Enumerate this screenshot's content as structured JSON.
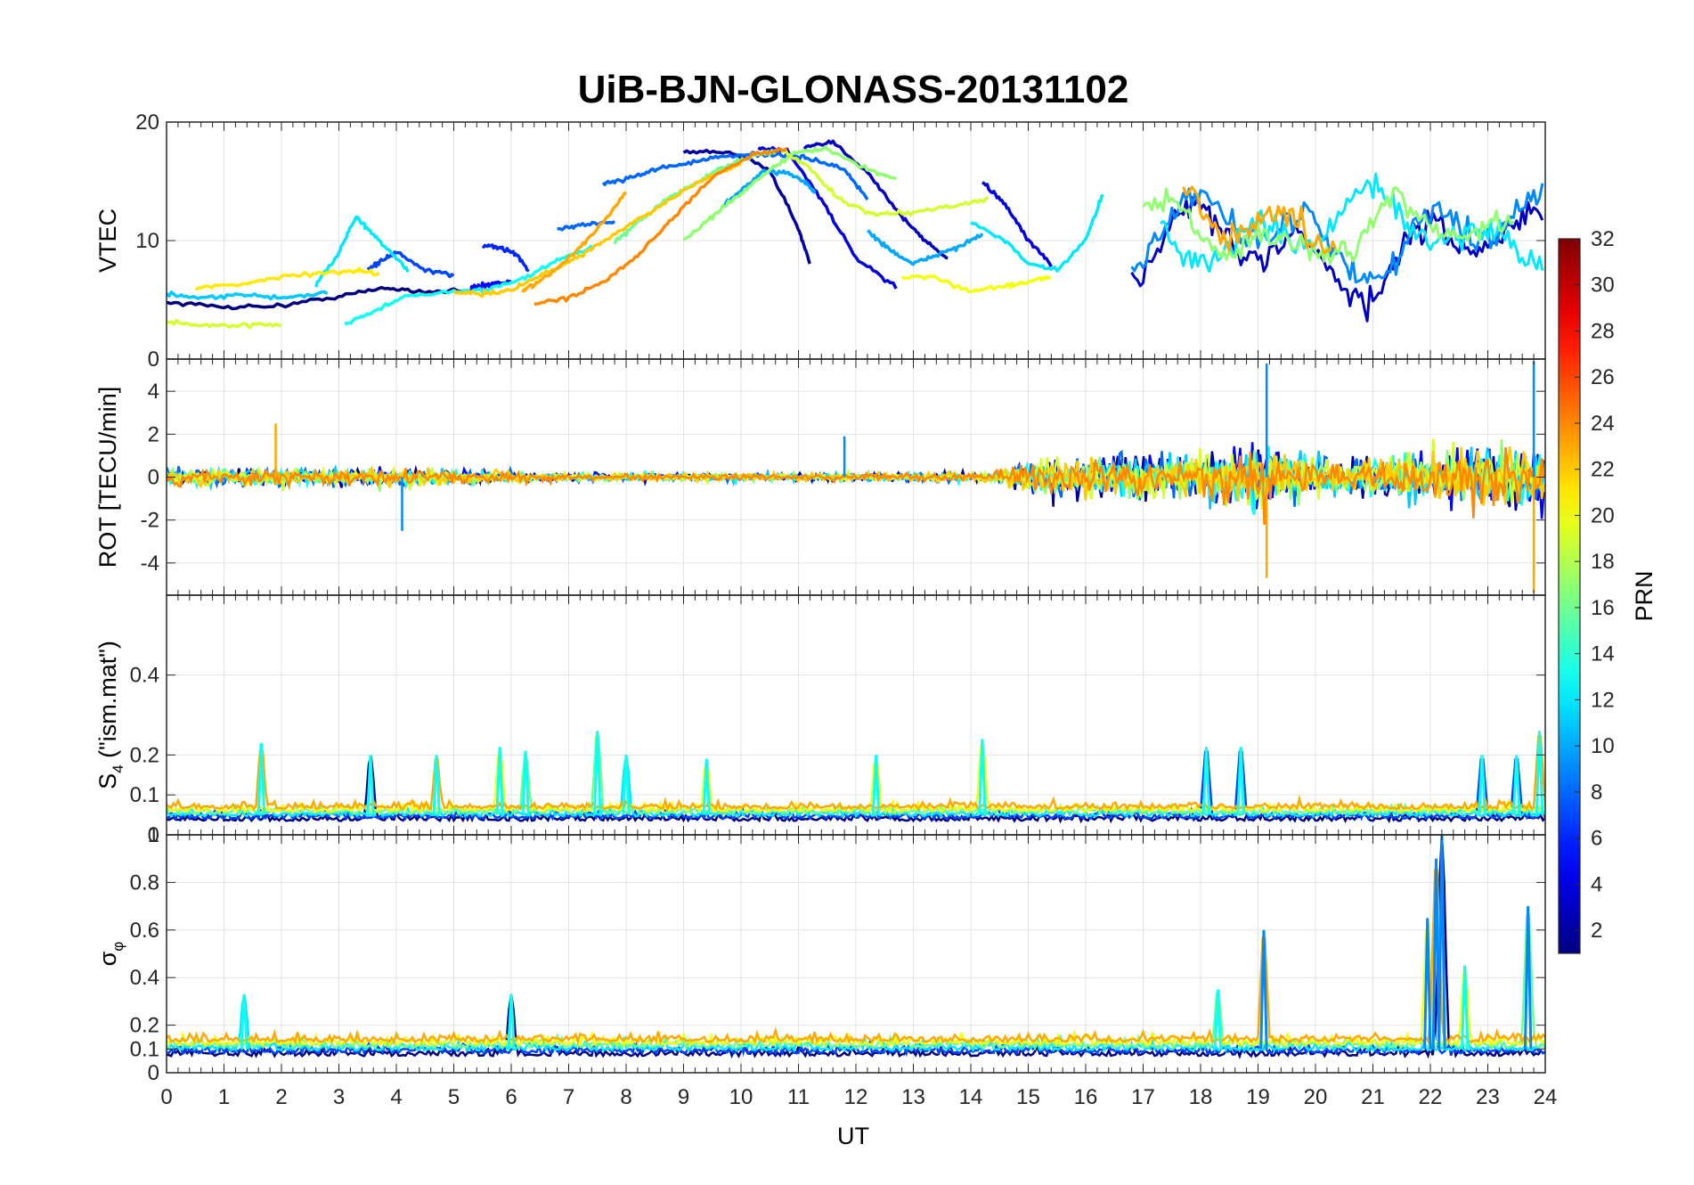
{
  "chart_data": {
    "type": "line",
    "title": "UiB-BJN-GLONASS-20131102",
    "xlabel": "UT",
    "xlim": [
      0,
      24
    ],
    "x_ticks": [
      "0",
      "1",
      "2",
      "3",
      "4",
      "5",
      "6",
      "7",
      "8",
      "9",
      "10",
      "11",
      "12",
      "13",
      "14",
      "15",
      "16",
      "17",
      "18",
      "19",
      "20",
      "21",
      "22",
      "23",
      "24"
    ],
    "grid": true,
    "line_color_by": "PRN",
    "colormap": "jet",
    "colorbar": {
      "label": "PRN",
      "range": [
        1,
        32
      ],
      "ticks": [
        "2",
        "4",
        "6",
        "8",
        "10",
        "12",
        "14",
        "16",
        "18",
        "20",
        "22",
        "24",
        "26",
        "28",
        "30",
        "32"
      ],
      "placement": "right"
    },
    "panels": [
      {
        "ylabel": "VTEC",
        "ylim": [
          0,
          20
        ],
        "y_ticks": [
          "0",
          "10",
          "20"
        ],
        "series": [
          {
            "prn": 1,
            "x": [
              0,
              1,
              2,
              3,
              3.8,
              4.5,
              5.5
            ],
            "y": [
              4.8,
              4.4,
              4.5,
              5.3,
              6.0,
              5.7,
              5.8
            ]
          },
          {
            "prn": 2,
            "x": [
              9,
              9.8,
              10.5,
              11,
              11.2
            ],
            "y": [
              17.5,
              17.5,
              16,
              11,
              8
            ]
          },
          {
            "prn": 3,
            "x": [
              11.1,
              11.6,
              12.2,
              12.8,
              13.2,
              13.6
            ],
            "y": [
              17.8,
              18.3,
              15.8,
              12,
              10,
              8.5
            ]
          },
          {
            "prn": 4,
            "x": [
              10.3,
              10.8,
              11.4,
              12,
              12.7
            ],
            "y": [
              17.8,
              17.6,
              13.5,
              8.5,
              6
            ]
          },
          {
            "prn": 4,
            "x": [
              14.2,
              14.6,
              15,
              15.4
            ],
            "y": [
              15,
              13,
              10,
              8
            ]
          },
          {
            "prn": 5,
            "x": [
              5.3,
              5.5,
              5.7,
              6
            ],
            "y": [
              6,
              6.2,
              6.4,
              6.5
            ]
          },
          {
            "prn": 6,
            "x": [
              5.5,
              5.8,
              6.1,
              6.3
            ],
            "y": [
              9.6,
              9.4,
              8.8,
              7.5
            ]
          },
          {
            "prn": 7,
            "x": [
              3.5,
              3.8,
              4,
              4.5,
              5
            ],
            "y": [
              7.5,
              8.5,
              9,
              7.5,
              7
            ]
          },
          {
            "prn": 8,
            "x": [
              6.8,
              7.2,
              7.8
            ],
            "y": [
              11,
              11.3,
              11.6
            ]
          },
          {
            "prn": 8,
            "x": [
              7.6,
              8,
              8.5,
              9,
              9.6,
              10.2,
              10.8,
              11.3,
              11.8,
              12.2
            ],
            "y": [
              14.8,
              15.2,
              16,
              16.5,
              17,
              17.3,
              17.2,
              16.8,
              16,
              13.5
            ]
          },
          {
            "prn": 10,
            "x": [
              12.2,
              12.6,
              13,
              13.4,
              13.8,
              14.2
            ],
            "y": [
              10.8,
              9.2,
              8,
              8.8,
              9.5,
              10.5
            ]
          },
          {
            "prn": 10,
            "x": [
              9.7,
              10,
              10.4,
              10.8,
              11.1,
              11.3
            ],
            "y": [
              13,
              14.2,
              15.8,
              15.8,
              15,
              14
            ]
          },
          {
            "prn": 11,
            "x": [
              0,
              0.6,
              1.3,
              2.1,
              2.8
            ],
            "y": [
              5.5,
              5.1,
              5.4,
              5.2,
              5.6
            ]
          },
          {
            "prn": 12,
            "x": [
              2.6,
              3,
              3.3,
              3.5,
              3.8,
              4.2
            ],
            "y": [
              6.2,
              9,
              12,
              11,
              9.5,
              7.5
            ]
          },
          {
            "prn": 12,
            "x": [
              14,
              14.6,
              15,
              15.5,
              16,
              16.3
            ],
            "y": [
              11.5,
              10,
              8,
              7.5,
              10,
              14
            ]
          },
          {
            "prn": 13,
            "x": [
              3.1,
              3.6,
              4.2,
              4.8,
              5.5,
              6.2,
              6.8,
              7.4
            ],
            "y": [
              3,
              4,
              5.4,
              5.6,
              5.8,
              6.8,
              8.3,
              9.5
            ]
          },
          {
            "prn": 16,
            "x": [
              7.8,
              8.2,
              8.7,
              9.2,
              9.6,
              10,
              10.3,
              10.6
            ],
            "y": [
              9.8,
              11.5,
              13.5,
              14.8,
              16,
              16.8,
              17.3,
              17.5
            ]
          },
          {
            "prn": 17,
            "x": [
              9,
              9.5,
              10,
              10.5,
              11,
              11.5,
              12.2,
              12.7
            ],
            "y": [
              10,
              12,
              14,
              16,
              17.5,
              17.7,
              16,
              15.2
            ]
          },
          {
            "prn": 19,
            "x": [
              0,
              0.6,
              1.3,
              2
            ],
            "y": [
              3.2,
              2.8,
              2.9,
              2.9
            ]
          },
          {
            "prn": 19,
            "x": [
              10.7,
              11.1,
              11.7,
              12.3,
              13,
              13.8,
              14.3
            ],
            "y": [
              17.6,
              16.5,
              13.5,
              12.2,
              12.4,
              13,
              13.5
            ]
          },
          {
            "prn": 20,
            "x": [
              12.8,
              13.4,
              14,
              14.6,
              15,
              15.4
            ],
            "y": [
              7,
              6.8,
              5.7,
              6.2,
              6.5,
              7
            ]
          },
          {
            "prn": 21,
            "x": [
              0.5,
              1.3,
              2,
              2.7,
              3.3,
              3.7
            ],
            "y": [
              6,
              6.3,
              7,
              7.2,
              7.5,
              7.2
            ]
          },
          {
            "prn": 22,
            "x": [
              5,
              5.5,
              6,
              6.5,
              7,
              7.5,
              8,
              8.5,
              9,
              9.5,
              10
            ],
            "y": [
              5.7,
              5.5,
              5.8,
              7,
              8.2,
              9.6,
              11.2,
              12.6,
              14.2,
              15.5,
              16.5
            ]
          },
          {
            "prn": 23,
            "x": [
              6.2,
              6.5,
              7,
              7.5,
              8
            ],
            "y": [
              5.8,
              6.5,
              8.5,
              11,
              14
            ]
          },
          {
            "prn": 24,
            "x": [
              6.4,
              7,
              7.6,
              8.2,
              8.8,
              9.5,
              10.2,
              10.8
            ],
            "y": [
              4.6,
              5.2,
              6.5,
              8.8,
              11.8,
              15.3,
              17.3,
              17.7
            ]
          }
        ],
        "storm_series": [
          {
            "prn": 3,
            "x0": 16.8,
            "x1": 24,
            "base": 9,
            "amp": 4.5
          },
          {
            "prn": 9,
            "x0": 16.8,
            "x1": 24,
            "base": 10.5,
            "amp": 4
          },
          {
            "prn": 12,
            "x0": 17.3,
            "x1": 24,
            "base": 11,
            "amp": 3.5
          },
          {
            "prn": 17,
            "x0": 17,
            "x1": 23.5,
            "base": 10.5,
            "amp": 3
          },
          {
            "prn": 23,
            "x0": 17.7,
            "x1": 20.4,
            "base": 12,
            "amp": 3.5
          }
        ]
      },
      {
        "ylabel": "ROT [TECU/min]",
        "ylim": [
          -5.5,
          5.5
        ],
        "y_ticks": [
          "-4",
          "-2",
          "0",
          "2",
          "4"
        ],
        "noise_envelope": [
          [
            0,
            0.9
          ],
          [
            4,
            0.9
          ],
          [
            7,
            0.4
          ],
          [
            12,
            0.4
          ],
          [
            14.5,
            0.5
          ],
          [
            15,
            1.8
          ],
          [
            17,
            2.2
          ],
          [
            19,
            3.2
          ],
          [
            20.5,
            1.8
          ],
          [
            21.5,
            2.5
          ],
          [
            24,
            3.5
          ]
        ],
        "peaks": [
          [
            19.15,
            5.3
          ],
          [
            19.15,
            -4.7
          ],
          [
            23.8,
            5.4
          ],
          [
            23.8,
            -5.4
          ],
          [
            11.8,
            1.9
          ],
          [
            1.9,
            2.5
          ],
          [
            4.1,
            -2.5
          ]
        ]
      },
      {
        "ylabel": "S4 (\"ism.mat\")",
        "ylim": [
          0,
          0.6
        ],
        "y_ticks": [
          "0",
          "0.1",
          "0.2",
          "0.4"
        ],
        "baseline": 0.05,
        "spikes": [
          [
            1.65,
            0.23
          ],
          [
            3.55,
            0.2
          ],
          [
            4.7,
            0.2
          ],
          [
            5.8,
            0.22
          ],
          [
            6.25,
            0.21
          ],
          [
            7.5,
            0.26
          ],
          [
            8,
            0.2
          ],
          [
            9.4,
            0.19
          ],
          [
            12.35,
            0.2
          ],
          [
            14.2,
            0.24
          ],
          [
            18.1,
            0.22
          ],
          [
            18.7,
            0.22
          ],
          [
            22.9,
            0.2
          ],
          [
            23.5,
            0.2
          ],
          [
            23.9,
            0.26
          ]
        ]
      },
      {
        "ylabel": "σφ",
        "ylim": [
          0,
          1
        ],
        "y_ticks": [
          "0",
          "0.1",
          "0.2",
          "0.4",
          "0.6",
          "0.8",
          "1"
        ],
        "baseline": 0.1,
        "spikes": [
          [
            1.35,
            0.33
          ],
          [
            6,
            0.33
          ],
          [
            18.3,
            0.35
          ],
          [
            19.1,
            0.6
          ],
          [
            21.95,
            0.65
          ],
          [
            22.1,
            0.9
          ],
          [
            22.2,
            1.0
          ],
          [
            22.6,
            0.45
          ],
          [
            23.7,
            0.7
          ]
        ]
      }
    ]
  }
}
